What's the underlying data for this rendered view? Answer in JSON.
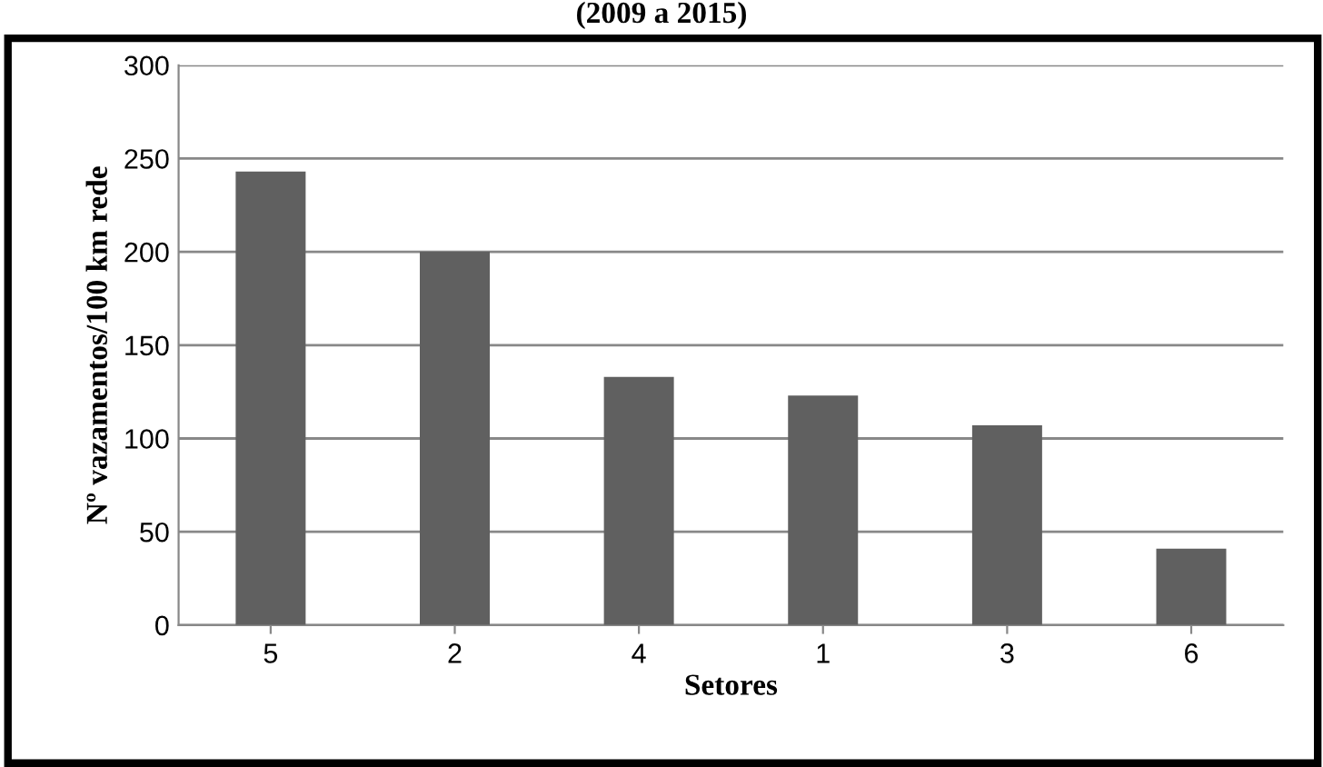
{
  "chart_data": {
    "type": "bar",
    "title": "(2009 a 2015)",
    "xlabel": "Setores",
    "ylabel": "Nº vazamentos/100 km rede",
    "categories": [
      "5",
      "2",
      "4",
      "1",
      "3",
      "6"
    ],
    "values": [
      243,
      200,
      133,
      123,
      107,
      41
    ],
    "color": "#606060",
    "ylim": [
      0,
      300
    ],
    "yticks": [
      0,
      50,
      100,
      150,
      200,
      250,
      300
    ],
    "grid": "y"
  }
}
